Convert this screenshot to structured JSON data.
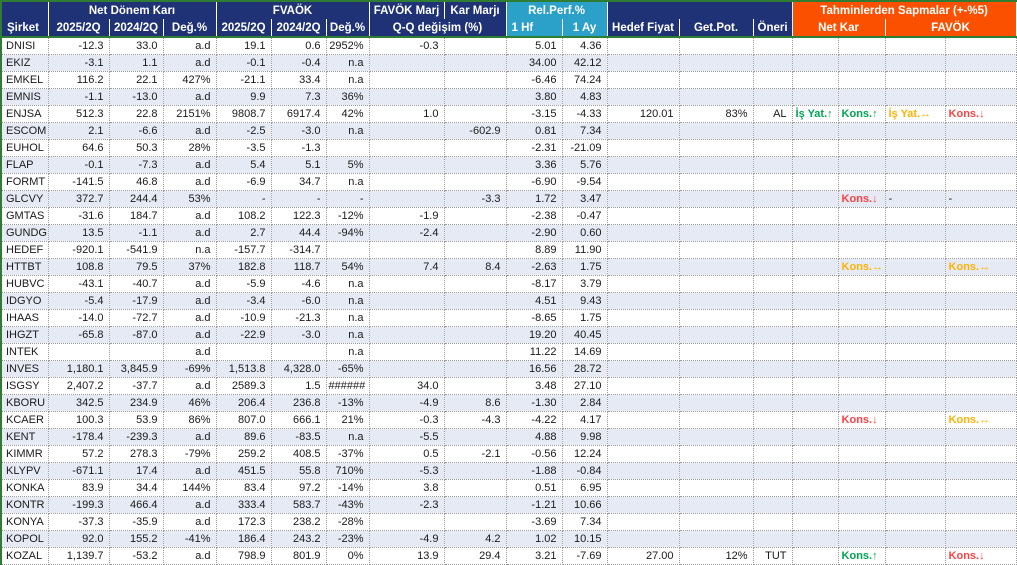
{
  "table": {
    "groups": {
      "net_donem_kari": "Net Dönem Karı",
      "fvaok": "FVAÖK",
      "favok_marj": "FAVÖK Marj",
      "kar_marji": "Kar Marjı",
      "rel_perf": "Rel.Perf.%",
      "tahminler": "Tahminlerden Sapmalar (+-%5)"
    },
    "cols": {
      "sirket": "Şirket",
      "q2025": "2025/2Q",
      "q2024": "2024/2Q",
      "deg": "Değ.%",
      "qq": "Q-Q değişim (%)",
      "hf1": "1 Hf",
      "ay1": "1 Ay",
      "hedef": "Hedef Fiyat",
      "getpot": "Get.Pot.",
      "oneri": "Öneri",
      "netkar": "Net Kar",
      "favok": "FAVÖK"
    },
    "colors": {
      "navy": "#1F3276",
      "cyan": "#2BA0C8",
      "orange": "#FB5000",
      "green_border": "#2E7D32",
      "row_alt": "#E6EAF5",
      "dev_up": "#00A651",
      "dev_flat": "#FFB300",
      "dev_down": "#FF4141"
    },
    "rows": [
      {
        "c": "DNISI",
        "v": [
          "-12.3",
          "33.0",
          "a.d",
          "19.1",
          "0.6",
          "2952%",
          "-0.3",
          "",
          "5.01",
          "4.36",
          "",
          "",
          ""
        ],
        "d": [
          null,
          null,
          null,
          null
        ]
      },
      {
        "c": "EKIZ",
        "v": [
          "-3.1",
          "1.1",
          "a.d",
          "-0.1",
          "-0.4",
          "n.a",
          "",
          "",
          "34.00",
          "42.12",
          "",
          "",
          ""
        ],
        "d": [
          null,
          null,
          null,
          null
        ]
      },
      {
        "c": "EMKEL",
        "v": [
          "116.2",
          "22.1",
          "427%",
          "-21.1",
          "33.4",
          "n.a",
          "",
          "",
          "-6.46",
          "74.24",
          "",
          "",
          ""
        ],
        "d": [
          null,
          null,
          null,
          null
        ]
      },
      {
        "c": "EMNIS",
        "v": [
          "-1.1",
          "-13.0",
          "a.d",
          "9.9",
          "7.3",
          "36%",
          "",
          "",
          "3.80",
          "4.83",
          "",
          "",
          ""
        ],
        "d": [
          null,
          null,
          null,
          null
        ]
      },
      {
        "c": "ENJSA",
        "v": [
          "512.3",
          "22.8",
          "2151%",
          "9808.7",
          "6917.4",
          "42%",
          "1.0",
          "",
          "-3.15",
          "-4.33",
          "120.01",
          "83%",
          "AL"
        ],
        "d": [
          {
            "t": "İş Yat.↑",
            "s": "up"
          },
          {
            "t": "Kons.↑",
            "s": "up"
          },
          {
            "t": "İş Yat.↔",
            "s": "flat"
          },
          {
            "t": "Kons.↓",
            "s": "down"
          }
        ]
      },
      {
        "c": "ESCOM",
        "v": [
          "2.1",
          "-6.6",
          "a.d",
          "-2.5",
          "-3.0",
          "n.a",
          "",
          "-602.9",
          "0.81",
          "7.34",
          "",
          "",
          ""
        ],
        "d": [
          null,
          null,
          null,
          null
        ]
      },
      {
        "c": "EUHOL",
        "v": [
          "64.6",
          "50.3",
          "28%",
          "-3.5",
          "-1.3",
          "",
          "",
          "",
          "-2.31",
          "-21.09",
          "",
          "",
          ""
        ],
        "d": [
          null,
          null,
          null,
          null
        ]
      },
      {
        "c": "FLAP",
        "v": [
          "-0.1",
          "-7.3",
          "a.d",
          "5.4",
          "5.1",
          "5%",
          "",
          "",
          "3.36",
          "5.76",
          "",
          "",
          ""
        ],
        "d": [
          null,
          null,
          null,
          null
        ]
      },
      {
        "c": "FORMT",
        "v": [
          "-141.5",
          "46.8",
          "a.d",
          "-6.9",
          "34.7",
          "n.a",
          "",
          "",
          "-6.90",
          "-9.54",
          "",
          "",
          ""
        ],
        "d": [
          null,
          null,
          null,
          null
        ]
      },
      {
        "c": "GLCVY",
        "v": [
          "372.7",
          "244.4",
          "53%",
          "-",
          "-",
          "-",
          "",
          "-3.3",
          "1.72",
          "3.47",
          "",
          "",
          ""
        ],
        "d": [
          null,
          {
            "t": "Kons.↓",
            "s": "down"
          },
          {
            "t": "-",
            "s": "plain"
          },
          {
            "t": "-",
            "s": "plain"
          }
        ]
      },
      {
        "c": "GMTAS",
        "v": [
          "-31.6",
          "184.7",
          "a.d",
          "108.2",
          "122.3",
          "-12%",
          "-1.9",
          "",
          "-2.38",
          "-0.47",
          "",
          "",
          ""
        ],
        "d": [
          null,
          null,
          null,
          null
        ]
      },
      {
        "c": "GUNDG",
        "v": [
          "13.5",
          "-1.1",
          "a.d",
          "2.7",
          "44.4",
          "-94%",
          "-2.4",
          "",
          "-2.90",
          "0.60",
          "",
          "",
          ""
        ],
        "d": [
          null,
          null,
          null,
          null
        ]
      },
      {
        "c": "HEDEF",
        "v": [
          "-920.1",
          "-541.9",
          "n.a",
          "-157.7",
          "-314.7",
          "",
          "",
          "",
          "8.89",
          "11.90",
          "",
          "",
          ""
        ],
        "d": [
          null,
          null,
          null,
          null
        ]
      },
      {
        "c": "HTTBT",
        "v": [
          "108.8",
          "79.5",
          "37%",
          "182.8",
          "118.7",
          "54%",
          "7.4",
          "8.4",
          "-2.63",
          "1.75",
          "",
          "",
          ""
        ],
        "d": [
          null,
          {
            "t": "Kons.↔",
            "s": "flat"
          },
          null,
          {
            "t": "Kons.↔",
            "s": "flat"
          }
        ]
      },
      {
        "c": "HUBVC",
        "v": [
          "-43.1",
          "-40.7",
          "a.d",
          "-5.9",
          "-4.6",
          "n.a",
          "",
          "",
          "-8.17",
          "3.79",
          "",
          "",
          ""
        ],
        "d": [
          null,
          null,
          null,
          null
        ]
      },
      {
        "c": "IDGYO",
        "v": [
          "-5.4",
          "-17.9",
          "a.d",
          "-3.4",
          "-6.0",
          "n.a",
          "",
          "",
          "4.51",
          "9.43",
          "",
          "",
          ""
        ],
        "d": [
          null,
          null,
          null,
          null
        ]
      },
      {
        "c": "IHAAS",
        "v": [
          "-14.0",
          "-72.7",
          "a.d",
          "-10.9",
          "-21.3",
          "n.a",
          "",
          "",
          "-8.65",
          "1.75",
          "",
          "",
          ""
        ],
        "d": [
          null,
          null,
          null,
          null
        ]
      },
      {
        "c": "IHGZT",
        "v": [
          "-65.8",
          "-87.0",
          "a.d",
          "-22.9",
          "-3.0",
          "n.a",
          "",
          "",
          "19.20",
          "40.45",
          "",
          "",
          ""
        ],
        "d": [
          null,
          null,
          null,
          null
        ]
      },
      {
        "c": "INTEK",
        "v": [
          "",
          "",
          "a.d",
          "",
          "",
          "n.a",
          "",
          "",
          "11.22",
          "14.69",
          "",
          "",
          ""
        ],
        "d": [
          null,
          null,
          null,
          null
        ]
      },
      {
        "c": "INVES",
        "v": [
          "1,180.1",
          "3,845.9",
          "-69%",
          "1,513.8",
          "4,328.0",
          "-65%",
          "",
          "",
          "16.56",
          "28.72",
          "",
          "",
          ""
        ],
        "d": [
          null,
          null,
          null,
          null
        ]
      },
      {
        "c": "ISGSY",
        "v": [
          "2,407.2",
          "-37.7",
          "a.d",
          "2589.3",
          "1.5",
          "######",
          "34.0",
          "",
          "3.48",
          "27.10",
          "",
          "",
          ""
        ],
        "d": [
          null,
          null,
          null,
          null
        ]
      },
      {
        "c": "KBORU",
        "v": [
          "342.5",
          "234.9",
          "46%",
          "206.4",
          "236.8",
          "-13%",
          "-4.9",
          "8.6",
          "-1.30",
          "2.84",
          "",
          "",
          ""
        ],
        "d": [
          null,
          null,
          null,
          null
        ]
      },
      {
        "c": "KCAER",
        "v": [
          "100.3",
          "53.9",
          "86%",
          "807.0",
          "666.1",
          "21%",
          "-0.3",
          "-4.3",
          "-4.22",
          "4.17",
          "",
          "",
          ""
        ],
        "d": [
          null,
          {
            "t": "Kons.↓",
            "s": "down"
          },
          null,
          {
            "t": "Kons.↔",
            "s": "flat"
          }
        ]
      },
      {
        "c": "KENT",
        "v": [
          "-178.4",
          "-239.3",
          "a.d",
          "89.6",
          "-83.5",
          "n.a",
          "-5.5",
          "",
          "4.88",
          "9.98",
          "",
          "",
          ""
        ],
        "d": [
          null,
          null,
          null,
          null
        ]
      },
      {
        "c": "KIMMR",
        "v": [
          "57.2",
          "278.3",
          "-79%",
          "259.2",
          "408.5",
          "-37%",
          "0.5",
          "-2.1",
          "-0.56",
          "12.24",
          "",
          "",
          ""
        ],
        "d": [
          null,
          null,
          null,
          null
        ]
      },
      {
        "c": "KLYPV",
        "v": [
          "-671.1",
          "17.4",
          "a.d",
          "451.5",
          "55.8",
          "710%",
          "-5.3",
          "",
          "-1.88",
          "-0.84",
          "",
          "",
          ""
        ],
        "d": [
          null,
          null,
          null,
          null
        ]
      },
      {
        "c": "KONKA",
        "v": [
          "83.9",
          "34.4",
          "144%",
          "83.4",
          "97.2",
          "-14%",
          "3.8",
          "",
          "0.51",
          "6.95",
          "",
          "",
          ""
        ],
        "d": [
          null,
          null,
          null,
          null
        ]
      },
      {
        "c": "KONTR",
        "v": [
          "-199.3",
          "466.4",
          "a.d",
          "333.4",
          "583.7",
          "-43%",
          "-2.3",
          "",
          "-1.21",
          "10.66",
          "",
          "",
          ""
        ],
        "d": [
          null,
          null,
          null,
          null
        ]
      },
      {
        "c": "KONYA",
        "v": [
          "-37.3",
          "-35.9",
          "a.d",
          "172.3",
          "238.2",
          "-28%",
          "",
          "",
          "-3.69",
          "7.34",
          "",
          "",
          ""
        ],
        "d": [
          null,
          null,
          null,
          null
        ]
      },
      {
        "c": "KOPOL",
        "v": [
          "92.0",
          "155.2",
          "-41%",
          "186.4",
          "243.2",
          "-23%",
          "-4.9",
          "4.2",
          "1.02",
          "10.15",
          "",
          "",
          ""
        ],
        "d": [
          null,
          null,
          null,
          null
        ]
      },
      {
        "c": "KOZAL",
        "v": [
          "1,139.7",
          "-53.2",
          "a.d",
          "798.9",
          "801.9",
          "0%",
          "13.9",
          "29.4",
          "3.21",
          "-7.69",
          "27.00",
          "12%",
          "TUT"
        ],
        "d": [
          null,
          {
            "t": "Kons.↑",
            "s": "up"
          },
          null,
          {
            "t": "Kons.↓",
            "s": "down"
          }
        ]
      }
    ]
  }
}
